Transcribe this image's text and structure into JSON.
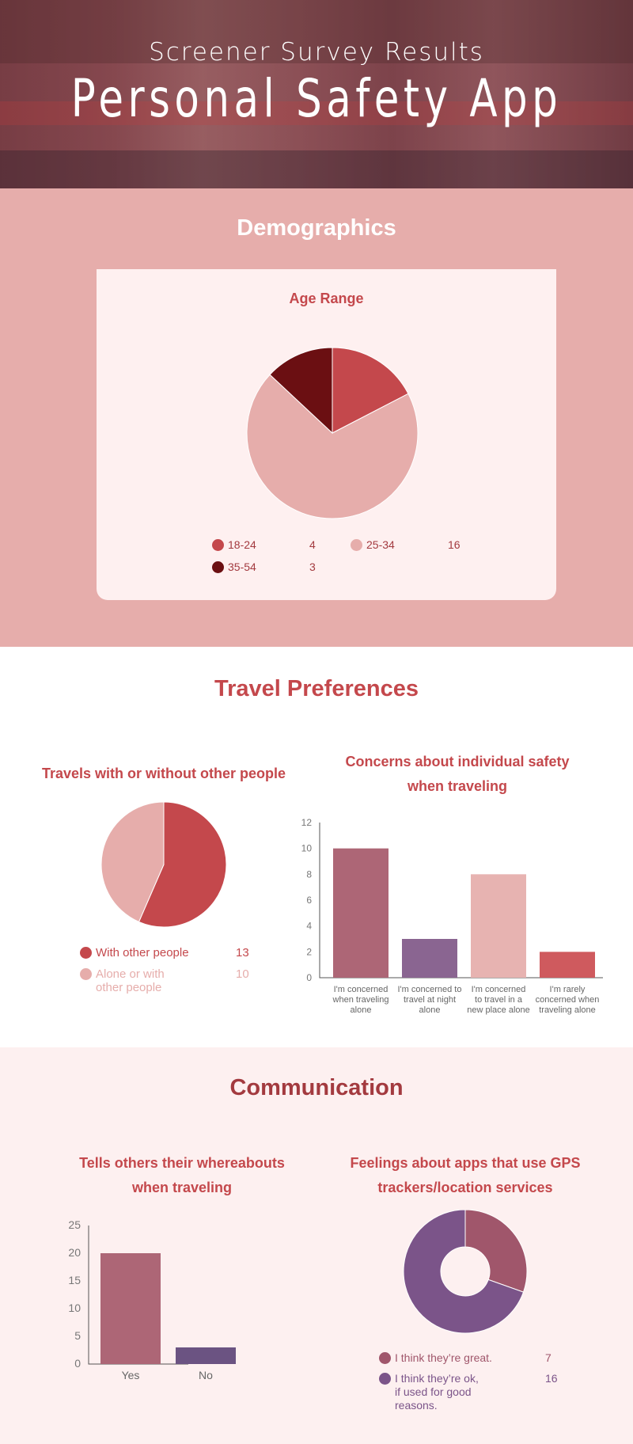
{
  "hero": {
    "subtitle": "Screener Survey Results",
    "title": "Personal Safety App"
  },
  "demographics": {
    "heading": "Demographics",
    "age_chart": {
      "title": "Age Range",
      "legend": [
        {
          "label": "18-24",
          "value": "4",
          "color": "#c4484c"
        },
        {
          "label": "25-34",
          "value": "16",
          "color": "#e6adab"
        },
        {
          "label": "35-54",
          "value": "3",
          "color": "#6b0f12"
        }
      ]
    }
  },
  "travel": {
    "heading": "Travel Preferences",
    "companion_chart": {
      "title": "Travels with or without other people",
      "legend": [
        {
          "label": "With other people",
          "value": "13",
          "color": "#c4484c"
        },
        {
          "label_lines": [
            "Alone or with",
            "other people"
          ],
          "value": "10",
          "color": "#e6adab"
        }
      ]
    },
    "concerns_chart": {
      "title_lines": [
        "Concerns about individual safety",
        "when traveling"
      ],
      "category_lines": [
        [
          "I'm concerned",
          "when traveling",
          "alone"
        ],
        [
          "I'm concerned to",
          "travel at night",
          "alone"
        ],
        [
          "I'm concerned",
          "to travel in a",
          "new place alone"
        ],
        [
          "I'm rarely",
          "concerned when",
          "traveling alone"
        ]
      ]
    }
  },
  "communication": {
    "heading": "Communication",
    "whereabouts_chart": {
      "title_lines": [
        "Tells others their whereabouts",
        "when traveling"
      ]
    },
    "gps_chart": {
      "title_lines": [
        "Feelings about apps that use GPS",
        "trackers/location services"
      ],
      "legend": [
        {
          "label_lines": [
            "I think they’re great."
          ],
          "value": "7",
          "color": "#a0566b"
        },
        {
          "label_lines": [
            "I think they’re ok,",
            "if used for good",
            "reasons."
          ],
          "value": "16",
          "color": "#7b5489"
        }
      ]
    }
  },
  "chart_data": [
    {
      "type": "pie",
      "title": "Age Range",
      "categories": [
        "18-24",
        "25-34",
        "35-54"
      ],
      "values": [
        4,
        16,
        3
      ],
      "colors": [
        "#c4484c",
        "#e6adab",
        "#6b0f12"
      ],
      "legend": "bottom"
    },
    {
      "type": "pie",
      "title": "Travels with or without other people",
      "categories": [
        "With other people",
        "Alone or with other people"
      ],
      "values": [
        13,
        10
      ],
      "colors": [
        "#c4484c",
        "#e6adab"
      ],
      "legend": "bottom"
    },
    {
      "type": "bar",
      "title": "Concerns about individual safety when traveling",
      "categories": [
        "I'm concerned when traveling alone",
        "I'm concerned to travel at night alone",
        "I'm concerned to travel in a new place alone",
        "I'm rarely concerned when traveling alone"
      ],
      "values": [
        10,
        3,
        8,
        2
      ],
      "colors": [
        "#ad6676",
        "#8a6591",
        "#e7b3b1",
        "#cf5a5e"
      ],
      "ylim": [
        0,
        12
      ],
      "yticks": [
        0,
        2,
        4,
        6,
        8,
        10,
        12
      ],
      "grid": false
    },
    {
      "type": "bar",
      "title": "Tells others their whereabouts when traveling",
      "categories": [
        "Yes",
        "No"
      ],
      "values": [
        20,
        3
      ],
      "colors": [
        "#ad6676",
        "#6b5382"
      ],
      "ylim": [
        0,
        25
      ],
      "yticks": [
        0,
        5,
        10,
        15,
        20,
        25
      ],
      "grid": false
    },
    {
      "type": "pie",
      "title": "Feelings about apps that use GPS trackers/location services",
      "categories": [
        "I think they’re great.",
        "I think they’re ok, if used for good reasons."
      ],
      "values": [
        7,
        16
      ],
      "colors": [
        "#a0566b",
        "#7b5489"
      ],
      "donut": true,
      "legend": "bottom"
    }
  ]
}
